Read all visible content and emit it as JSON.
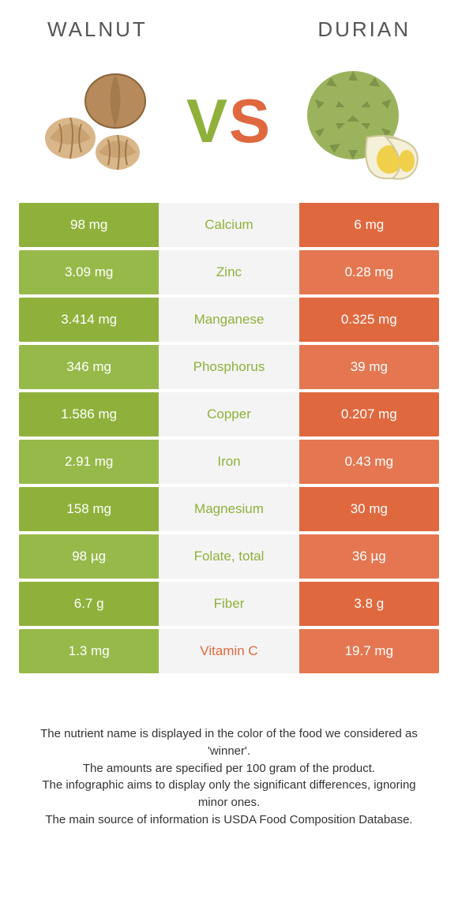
{
  "foods": {
    "left": {
      "name": "Walnut",
      "color": "#8fb13b",
      "light": "#97b94a",
      "img_bg": "#c49a6c"
    },
    "right": {
      "name": "Durian",
      "color": "#e0683f",
      "light": "#e47752",
      "img_bg": "#9cb35d"
    }
  },
  "vs": {
    "v": "V",
    "s": "S"
  },
  "table_bg": "#f4f4f4",
  "rows": [
    {
      "label": "Calcium",
      "left": "98 mg",
      "right": "6 mg",
      "winner": "left"
    },
    {
      "label": "Zinc",
      "left": "3.09 mg",
      "right": "0.28 mg",
      "winner": "left"
    },
    {
      "label": "Manganese",
      "left": "3.414 mg",
      "right": "0.325 mg",
      "winner": "left"
    },
    {
      "label": "Phosphorus",
      "left": "346 mg",
      "right": "39 mg",
      "winner": "left"
    },
    {
      "label": "Copper",
      "left": "1.586 mg",
      "right": "0.207 mg",
      "winner": "left"
    },
    {
      "label": "Iron",
      "left": "2.91 mg",
      "right": "0.43 mg",
      "winner": "left"
    },
    {
      "label": "Magnesium",
      "left": "158 mg",
      "right": "30 mg",
      "winner": "left"
    },
    {
      "label": "Folate, total",
      "left": "98 µg",
      "right": "36 µg",
      "winner": "left"
    },
    {
      "label": "Fiber",
      "left": "6.7 g",
      "right": "3.8 g",
      "winner": "left"
    },
    {
      "label": "Vitamin C",
      "left": "1.3 mg",
      "right": "19.7 mg",
      "winner": "right"
    }
  ],
  "footer": [
    "The nutrient name is displayed in the color of the food we considered as 'winner'.",
    "The amounts are specified per 100 gram of the product.",
    "The infographic aims to display only the significant differences, ignoring minor ones.",
    "The main source of information is USDA Food Composition Database."
  ]
}
